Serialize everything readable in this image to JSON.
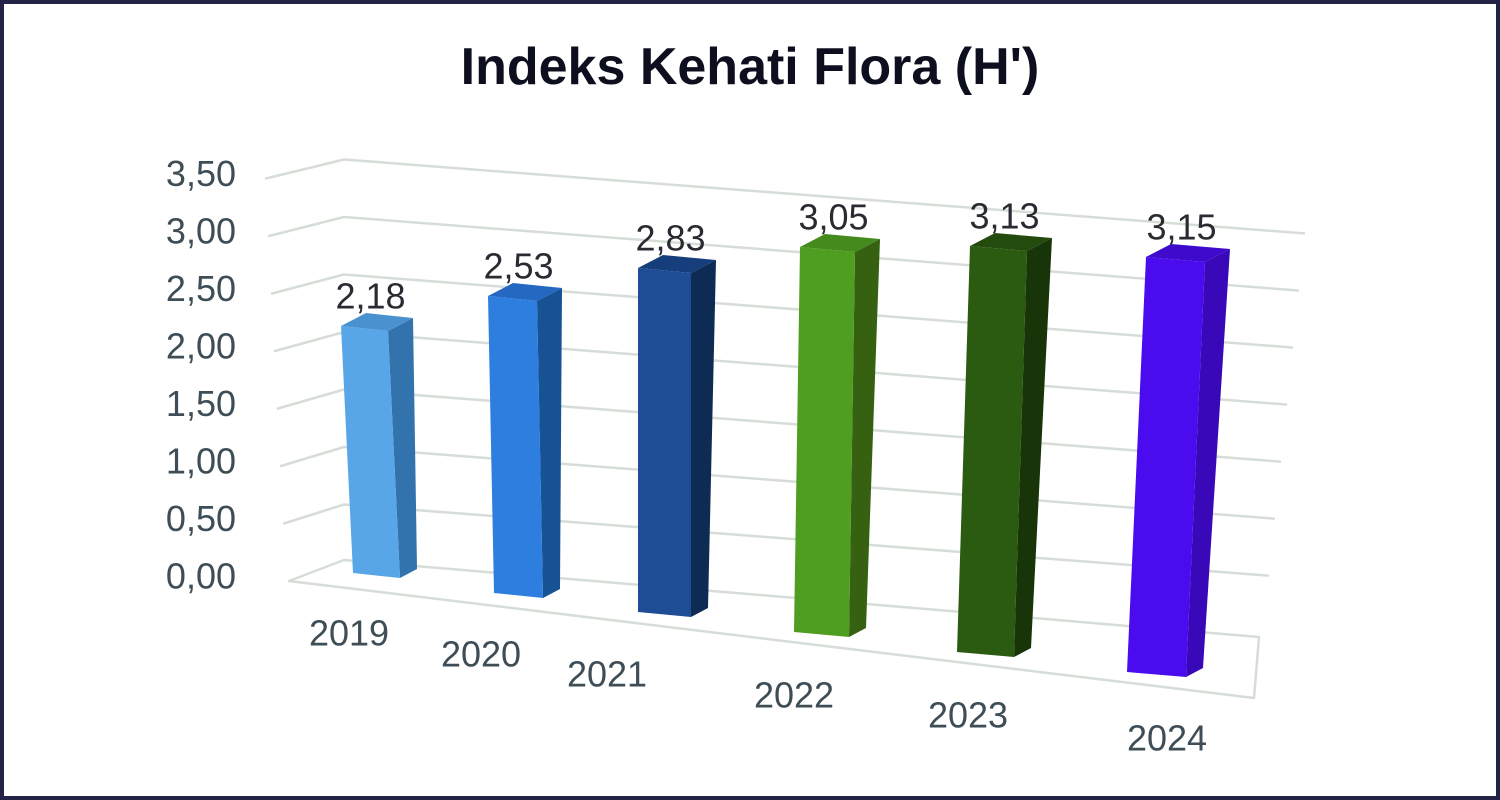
{
  "chart_data": {
    "type": "bar",
    "style_3d": true,
    "title": "Indeks Kehati Flora (H')",
    "xlabel": "",
    "ylabel": "",
    "categories": [
      "2019",
      "2020",
      "2021",
      "2022",
      "2023",
      "2024"
    ],
    "values": [
      2.18,
      2.53,
      2.83,
      3.05,
      3.13,
      3.15
    ],
    "value_labels": [
      "2,18",
      "2,53",
      "2,83",
      "3,05",
      "3,13",
      "3,15"
    ],
    "series": [
      {
        "name": "Indeks Kehati Flora (H')",
        "values": [
          2.18,
          2.53,
          2.83,
          3.05,
          3.13,
          3.15
        ]
      }
    ],
    "decimal_separator": ",",
    "ylim": [
      0,
      3.5
    ],
    "y_step": 0.5,
    "y_tick_labels": [
      "0,00",
      "0,50",
      "1,00",
      "1,50",
      "2,00",
      "2,50",
      "3,00",
      "3,50"
    ],
    "grid": true,
    "legend": false,
    "colors": {
      "bars": [
        {
          "category": "2019",
          "front": "#58A6E8",
          "side": "#3273AE",
          "top": "#4A92CF"
        },
        {
          "category": "2020",
          "front": "#2E7EDF",
          "side": "#175294",
          "top": "#2568C2"
        },
        {
          "category": "2021",
          "front": "#1E4D95",
          "side": "#0E2B54",
          "top": "#173E7C"
        },
        {
          "category": "2022",
          "front": "#4F9E21",
          "side": "#356110",
          "top": "#448A1C"
        },
        {
          "category": "2023",
          "front": "#2B5B10",
          "side": "#183409",
          "top": "#234B0D"
        },
        {
          "category": "2024",
          "front": "#4A0CEF",
          "side": "#3908B8",
          "top": "#3F0ACB"
        }
      ],
      "gridline": "#D6DDD6",
      "title_text": "#0E0F1E",
      "axis_text": "#3E4D56",
      "value_text": "#2A2A33",
      "border": "#232345",
      "background": "#FFFFFF"
    }
  }
}
